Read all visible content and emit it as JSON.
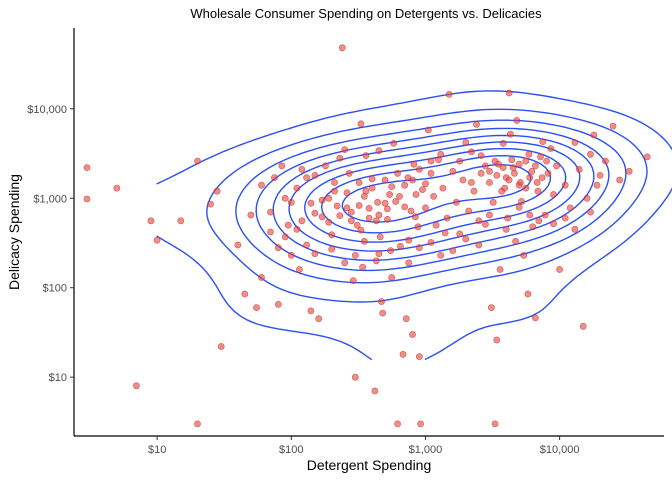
{
  "chart_data": {
    "type": "scatter",
    "title": "Wholesale Consumer Spending on Detergents vs. Delicacies",
    "xlabel": "Detergent Spending",
    "ylabel": "Delicacy Spending",
    "x_scale": "log10",
    "y_scale": "log10",
    "xlim": [
      2.4,
      60000
    ],
    "ylim": [
      2.2,
      80000
    ],
    "x_ticks": [
      {
        "value": 10,
        "label": "$10"
      },
      {
        "value": 100,
        "label": "$100"
      },
      {
        "value": 1000,
        "label": "$1,000"
      },
      {
        "value": 10000,
        "label": "$10,000"
      }
    ],
    "y_ticks": [
      {
        "value": 10,
        "label": "$10"
      },
      {
        "value": 100,
        "label": "$100"
      },
      {
        "value": 1000,
        "label": "$1,000"
      },
      {
        "value": 10000,
        "label": "$10,000"
      }
    ],
    "grid": false,
    "colors": {
      "points": "#e8413b",
      "points_stroke": "#c0302b",
      "contours": "#2b4ff5",
      "axis": "#000000"
    },
    "points_xy": [
      [
        3,
        2200
      ],
      [
        3,
        980
      ],
      [
        5,
        1300
      ],
      [
        7,
        8
      ],
      [
        9,
        560
      ],
      [
        10,
        340
      ],
      [
        15,
        560
      ],
      [
        20,
        2600
      ],
      [
        20,
        3
      ],
      [
        25,
        860
      ],
      [
        28,
        1200
      ],
      [
        30,
        22
      ],
      [
        40,
        300
      ],
      [
        45,
        85
      ],
      [
        50,
        650
      ],
      [
        55,
        60
      ],
      [
        60,
        130
      ],
      [
        70,
        700
      ],
      [
        75,
        1700
      ],
      [
        80,
        65
      ],
      [
        85,
        2300
      ],
      [
        90,
        370
      ],
      [
        95,
        500
      ],
      [
        100,
        900
      ],
      [
        110,
        1300
      ],
      [
        115,
        160
      ],
      [
        120,
        2100
      ],
      [
        130,
        300
      ],
      [
        140,
        55
      ],
      [
        150,
        1800
      ],
      [
        160,
        45
      ],
      [
        170,
        620
      ],
      [
        180,
        2300
      ],
      [
        190,
        1000
      ],
      [
        200,
        390
      ],
      [
        210,
        1500
      ],
      [
        220,
        820
      ],
      [
        230,
        2800
      ],
      [
        240,
        48000
      ],
      [
        250,
        3500
      ],
      [
        260,
        1150
      ],
      [
        270,
        1900
      ],
      [
        280,
        700
      ],
      [
        290,
        120
      ],
      [
        300,
        10
      ],
      [
        310,
        500
      ],
      [
        320,
        1500
      ],
      [
        330,
        6800
      ],
      [
        340,
        170
      ],
      [
        350,
        1050
      ],
      [
        360,
        3000
      ],
      [
        380,
        770
      ],
      [
        400,
        1300
      ],
      [
        420,
        7
      ],
      [
        430,
        200
      ],
      [
        440,
        900
      ],
      [
        450,
        3400
      ],
      [
        460,
        370
      ],
      [
        470,
        70
      ],
      [
        480,
        52
      ],
      [
        500,
        1600
      ],
      [
        520,
        760
      ],
      [
        540,
        1100
      ],
      [
        560,
        130
      ],
      [
        580,
        4100
      ],
      [
        600,
        920
      ],
      [
        620,
        3
      ],
      [
        650,
        290
      ],
      [
        680,
        18
      ],
      [
        700,
        1400
      ],
      [
        720,
        45
      ],
      [
        750,
        190
      ],
      [
        780,
        720
      ],
      [
        800,
        30
      ],
      [
        820,
        2400
      ],
      [
        850,
        1100
      ],
      [
        880,
        480
      ],
      [
        900,
        17
      ],
      [
        920,
        3
      ],
      [
        950,
        1250
      ],
      [
        1000,
        780
      ],
      [
        1050,
        5800
      ],
      [
        1100,
        1900
      ],
      [
        1150,
        1050
      ],
      [
        1200,
        500
      ],
      [
        1250,
        2700
      ],
      [
        1300,
        230
      ],
      [
        1350,
        1300
      ],
      [
        1450,
        600
      ],
      [
        1500,
        14500
      ],
      [
        1600,
        2000
      ],
      [
        1700,
        900
      ],
      [
        1800,
        400
      ],
      [
        1900,
        1600
      ],
      [
        2000,
        4200
      ],
      [
        2100,
        720
      ],
      [
        2200,
        3300
      ],
      [
        2300,
        1200
      ],
      [
        2400,
        6700
      ],
      [
        2500,
        300
      ],
      [
        2600,
        1900
      ],
      [
        2800,
        510
      ],
      [
        3000,
        1500
      ],
      [
        3100,
        60
      ],
      [
        3200,
        900
      ],
      [
        3300,
        3
      ],
      [
        3400,
        26
      ],
      [
        3500,
        2400
      ],
      [
        3600,
        160
      ],
      [
        3700,
        1200
      ],
      [
        3800,
        4100
      ],
      [
        4000,
        1700
      ],
      [
        4100,
        600
      ],
      [
        4200,
        15000
      ],
      [
        4300,
        5200
      ],
      [
        4500,
        2200
      ],
      [
        4700,
        330
      ],
      [
        4800,
        7400
      ],
      [
        5000,
        1400
      ],
      [
        5200,
        920
      ],
      [
        5400,
        230
      ],
      [
        5600,
        2600
      ],
      [
        5800,
        85
      ],
      [
        6000,
        1700
      ],
      [
        6300,
        480
      ],
      [
        6600,
        46
      ],
      [
        6900,
        1200
      ],
      [
        7200,
        2900
      ],
      [
        7500,
        4300
      ],
      [
        7800,
        650
      ],
      [
        8200,
        1900
      ],
      [
        8600,
        3600
      ],
      [
        9000,
        1100
      ],
      [
        9500,
        2300
      ],
      [
        10000,
        160
      ],
      [
        11000,
        1400
      ],
      [
        12000,
        780
      ],
      [
        13000,
        4200
      ],
      [
        14000,
        2100
      ],
      [
        15000,
        37
      ],
      [
        16000,
        1000
      ],
      [
        17000,
        3100
      ],
      [
        18000,
        5100
      ],
      [
        19000,
        1400
      ],
      [
        20000,
        1800
      ],
      [
        22000,
        2600
      ],
      [
        25000,
        6400
      ],
      [
        28000,
        1600
      ],
      [
        33000,
        2000
      ],
      [
        45000,
        2900
      ],
      [
        140,
        880
      ],
      [
        170,
        950
      ],
      [
        210,
        1200
      ],
      [
        260,
        780
      ],
      [
        320,
        830
      ],
      [
        360,
        1200
      ],
      [
        400,
        1650
      ],
      [
        450,
        650
      ],
      [
        500,
        880
      ],
      [
        560,
        1350
      ],
      [
        620,
        1900
      ],
      [
        700,
        800
      ],
      [
        800,
        1600
      ],
      [
        900,
        2100
      ],
      [
        1000,
        1450
      ],
      [
        120,
        560
      ],
      [
        150,
        680
      ],
      [
        190,
        540
      ],
      [
        230,
        640
      ],
      [
        280,
        560
      ],
      [
        330,
        440
      ],
      [
        380,
        600
      ],
      [
        430,
        560
      ],
      [
        520,
        580
      ],
      [
        640,
        1050
      ],
      [
        740,
        1700
      ],
      [
        840,
        620
      ],
      [
        1100,
        2600
      ],
      [
        1300,
        3100
      ],
      [
        1800,
        2600
      ],
      [
        2600,
        3000
      ],
      [
        3000,
        2000
      ],
      [
        3400,
        1800
      ],
      [
        3800,
        2200
      ],
      [
        4200,
        1600
      ],
      [
        4600,
        1900
      ],
      [
        5000,
        2400
      ],
      [
        5600,
        1300
      ],
      [
        6200,
        2000
      ],
      [
        6800,
        1500
      ],
      [
        7400,
        1700
      ],
      [
        8000,
        2600
      ],
      [
        2200,
        1500
      ],
      [
        2800,
        2300
      ],
      [
        3300,
        2600
      ],
      [
        3900,
        1300
      ],
      [
        4400,
        2700
      ],
      [
        5100,
        1500
      ],
      [
        5900,
        3100
      ],
      [
        6600,
        2300
      ],
      [
        70,
        420
      ],
      [
        90,
        1000
      ],
      [
        110,
        450
      ],
      [
        130,
        1700
      ],
      [
        60,
        1400
      ],
      [
        80,
        280
      ],
      [
        100,
        230
      ],
      [
        150,
        240
      ],
      [
        200,
        270
      ],
      [
        250,
        190
      ],
      [
        300,
        230
      ],
      [
        350,
        330
      ],
      [
        450,
        240
      ],
      [
        550,
        260
      ],
      [
        750,
        340
      ],
      [
        900,
        280
      ],
      [
        1100,
        320
      ],
      [
        1400,
        410
      ],
      [
        1600,
        260
      ],
      [
        2000,
        350
      ],
      [
        2500,
        560
      ],
      [
        3000,
        650
      ],
      [
        4000,
        450
      ],
      [
        5000,
        790
      ],
      [
        6000,
        650
      ],
      [
        7000,
        560
      ],
      [
        9000,
        520
      ],
      [
        11000,
        600
      ],
      [
        13000,
        450
      ],
      [
        17000,
        700
      ]
    ],
    "contour_levels": 9
  }
}
